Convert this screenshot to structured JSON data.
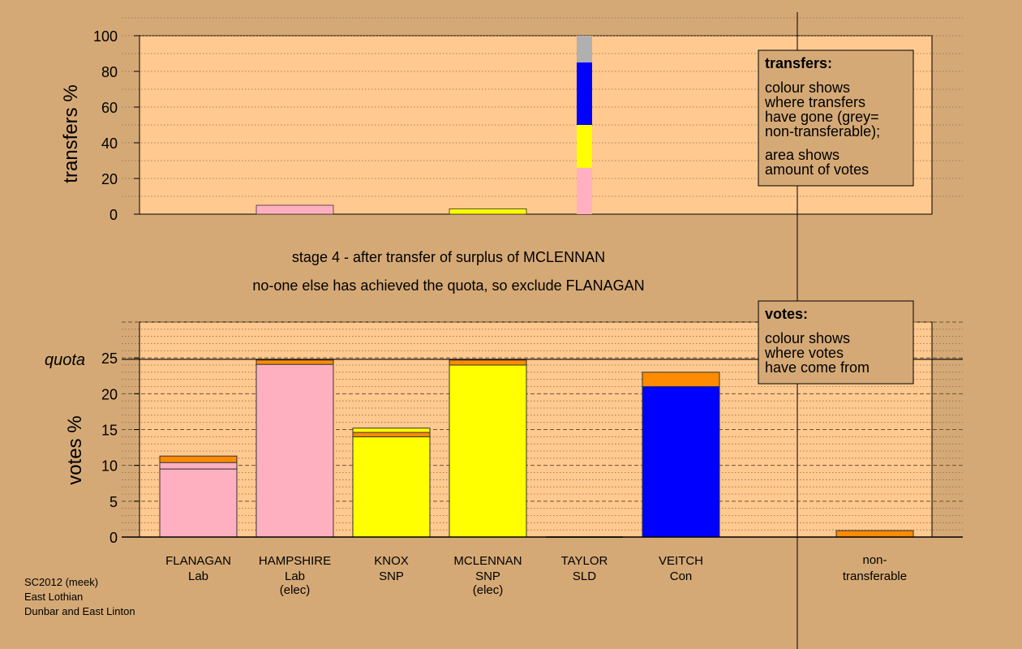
{
  "chart_data": [
    {
      "type": "bar",
      "stacked": true,
      "ylabel": "transfers %",
      "ylim": [
        0,
        100
      ],
      "yticks": [
        0,
        20,
        40,
        60,
        80,
        100
      ],
      "grid": "dotted horizontal",
      "categories": [
        "FLANAGAN",
        "HAMPSHIRE",
        "KNOX",
        "MCLENNAN",
        "TAYLOR",
        "VEITCH"
      ],
      "bars": [
        {
          "category": "HAMPSHIRE",
          "segments": [
            {
              "color": "#ffb0c0",
              "value": 5
            }
          ]
        },
        {
          "category": "MCLENNAN",
          "segments": [
            {
              "color": "#ffff00",
              "value": 3
            }
          ]
        },
        {
          "category": "MCLENNAN",
          "segments": [
            {
              "color": "#ffb0c0",
              "value": 26
            },
            {
              "color": "#ffff00",
              "value": 24
            },
            {
              "color": "#0000ff",
              "value": 35
            },
            {
              "color": "#b0b0b0",
              "value": 15
            }
          ]
        }
      ],
      "legend": {
        "title": "transfers:",
        "lines": [
          "colour shows",
          "where transfers",
          "have gone (grey=",
          "non-transferable);"
        ],
        "lines2": [
          "area shows",
          "amount of votes"
        ]
      }
    },
    {
      "type": "bar",
      "stacked": true,
      "ylabel": "votes %",
      "ylim": [
        0,
        30
      ],
      "yticks": [
        0,
        5,
        10,
        15,
        20,
        25
      ],
      "quota": {
        "label": "quota",
        "value": 24.8
      },
      "grid": "dashed/dotted horizontal",
      "categories": [
        {
          "name": "FLANAGAN",
          "party": "Lab",
          "note": ""
        },
        {
          "name": "HAMPSHIRE",
          "party": "Lab",
          "note": "(elec)"
        },
        {
          "name": "KNOX",
          "party": "SNP",
          "note": ""
        },
        {
          "name": "MCLENNAN",
          "party": "SNP",
          "note": "(elec)"
        },
        {
          "name": "TAYLOR",
          "party": "SLD",
          "note": ""
        },
        {
          "name": "VEITCH",
          "party": "Con",
          "note": ""
        }
      ],
      "bars": [
        {
          "category": "FLANAGAN",
          "segments": [
            {
              "color": "#ffb0c0",
              "value": 9.5
            },
            {
              "color": "#ffb0c0",
              "value": 0.9
            },
            {
              "color": "#ff8c00",
              "value": 0.9
            }
          ]
        },
        {
          "category": "HAMPSHIRE",
          "segments": [
            {
              "color": "#ffb0c0",
              "value": 24.1
            },
            {
              "color": "#ff8c00",
              "value": 0.6
            }
          ]
        },
        {
          "category": "KNOX",
          "segments": [
            {
              "color": "#ffff00",
              "value": 14.0
            },
            {
              "color": "#ff8c00",
              "value": 0.6
            },
            {
              "color": "#ffff00",
              "value": 0.6
            }
          ]
        },
        {
          "category": "MCLENNAN",
          "segments": [
            {
              "color": "#ffff00",
              "value": 24.0
            },
            {
              "color": "#ff8c00",
              "value": 0.7
            }
          ]
        },
        {
          "category": "TAYLOR",
          "segments": []
        },
        {
          "category": "VEITCH",
          "segments": [
            {
              "color": "#0000ff",
              "value": 21.0
            },
            {
              "color": "#ff8c00",
              "value": 2.0
            }
          ]
        },
        {
          "category": "non-transferable",
          "segments": [
            {
              "color": "#ff8c00",
              "value": 0.9
            }
          ]
        }
      ],
      "extra_category": [
        "non-",
        "transferable"
      ],
      "legend": {
        "title": "votes:",
        "lines": [
          "colour shows",
          "where votes",
          "have come from"
        ]
      }
    }
  ],
  "captions": {
    "stage": "stage 4 - after transfer of surplus of MCLENNAN",
    "action": "no-one else has achieved the quota, so exclude FLANAGAN"
  },
  "footer": [
    "SC2012 (meek)",
    "East Lothian",
    "Dunbar and East Linton"
  ]
}
